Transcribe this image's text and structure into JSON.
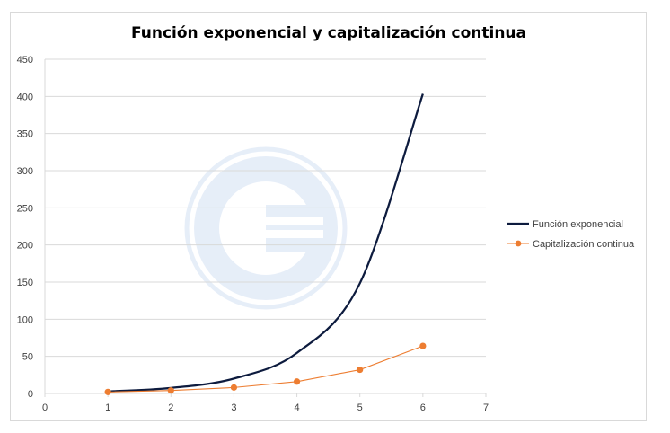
{
  "chart_data": {
    "type": "scatter",
    "title": "Función exponencial y capitalización continua",
    "xlabel": "",
    "ylabel": "",
    "xlim": [
      0,
      7
    ],
    "ylim": [
      0,
      450
    ],
    "x_ticks": [
      0,
      1,
      2,
      3,
      4,
      5,
      6,
      7
    ],
    "y_ticks": [
      0,
      50,
      100,
      150,
      200,
      250,
      300,
      350,
      400,
      450
    ],
    "grid": "horizontal",
    "legend_position": "right",
    "series": [
      {
        "name": "Función exponencial",
        "color": "#0d1b3e",
        "style": "smooth-line",
        "markers": false,
        "x": [
          1,
          2,
          3,
          4,
          5,
          6
        ],
        "y": [
          2.72,
          7.39,
          20.09,
          54.6,
          148.41,
          403.43
        ]
      },
      {
        "name": "Capitalización continua",
        "color": "#ed7d31",
        "style": "line-markers",
        "markers": true,
        "x": [
          1,
          2,
          3,
          4,
          5,
          6
        ],
        "y": [
          2,
          4,
          8,
          16,
          32,
          64
        ]
      }
    ]
  }
}
